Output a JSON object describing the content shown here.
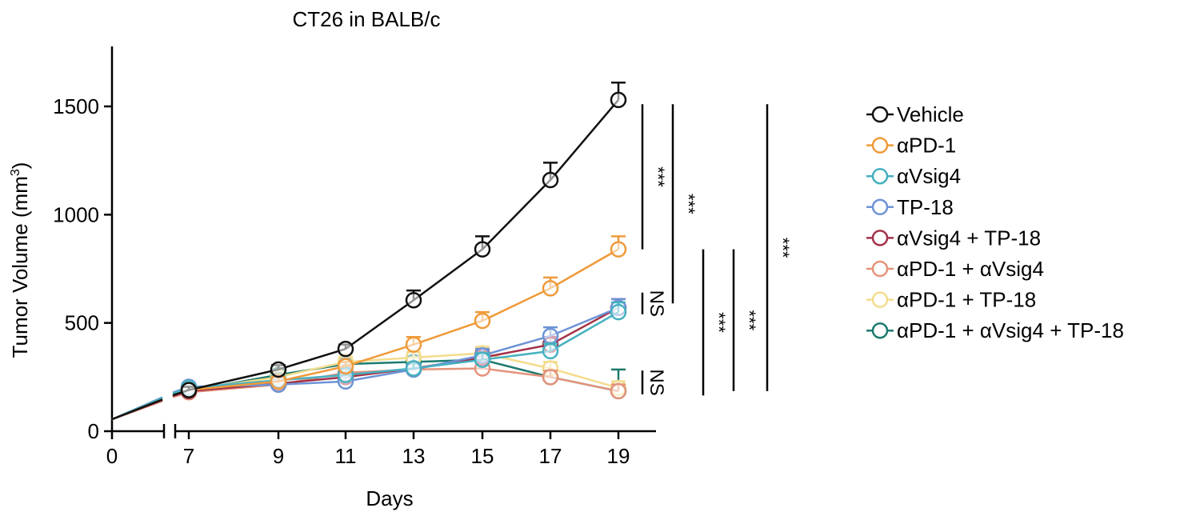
{
  "chart_data": {
    "type": "line",
    "title": "CT26 in BALB/c",
    "xlabel": "Days",
    "ylabel": "Tumor Volume (mm³)",
    "ylabel_main": "Tumor Volume (mm",
    "ylabel_sup": "3",
    "ylabel_close": ")",
    "xlim": [
      0,
      19
    ],
    "ylim": [
      0,
      1800
    ],
    "x_ticks": [
      0,
      7,
      9,
      11,
      13,
      15,
      17,
      19
    ],
    "x_tick_labels": [
      "0",
      "7",
      "9",
      "11",
      "13",
      "15",
      "17",
      "19"
    ],
    "y_ticks": [
      0,
      500,
      1000,
      1500
    ],
    "y_tick_labels": [
      "0",
      "500",
      "1000",
      "1500"
    ],
    "axis_break": true,
    "legend_position": "right",
    "start_point": {
      "x": 0,
      "y": 55
    },
    "series": [
      {
        "name": "Vehicle",
        "color": "#111111",
        "x": [
          7,
          9,
          11,
          13,
          15,
          17,
          19
        ],
        "y": [
          190,
          285,
          380,
          605,
          840,
          1160,
          1530
        ],
        "err": [
          15,
          20,
          20,
          45,
          60,
          80,
          80
        ]
      },
      {
        "name": "αPD-1",
        "color": "#ef9a3a",
        "x": [
          7,
          9,
          11,
          13,
          15,
          17,
          19
        ],
        "y": [
          190,
          230,
          300,
          400,
          510,
          660,
          840
        ],
        "err": [
          15,
          20,
          20,
          35,
          40,
          50,
          60
        ]
      },
      {
        "name": "αVsig4",
        "color": "#45b0c0",
        "x": [
          7,
          9,
          11,
          13,
          15,
          17,
          19
        ],
        "y": [
          200,
          235,
          260,
          290,
          330,
          370,
          550
        ],
        "err": [
          15,
          20,
          20,
          25,
          30,
          35,
          45
        ]
      },
      {
        "name": "TP-18",
        "color": "#6d93d6",
        "x": [
          7,
          9,
          11,
          13,
          15,
          17,
          19
        ],
        "y": [
          205,
          215,
          230,
          285,
          350,
          440,
          570
        ],
        "err": [
          15,
          20,
          20,
          25,
          30,
          40,
          40
        ]
      },
      {
        "name": "αVsig4 + TP-18",
        "color": "#a3324a",
        "x": [
          7,
          9,
          11,
          13,
          15,
          17,
          19
        ],
        "y": [
          185,
          220,
          250,
          290,
          340,
          400,
          570
        ],
        "err": [
          15,
          20,
          20,
          25,
          30,
          35,
          40
        ]
      },
      {
        "name": "αPD-1 + αVsig4",
        "color": "#e4937a",
        "x": [
          7,
          9,
          11,
          13,
          15,
          17,
          19
        ],
        "y": [
          180,
          215,
          270,
          285,
          290,
          250,
          185
        ],
        "err": [
          15,
          20,
          20,
          25,
          30,
          30,
          30
        ]
      },
      {
        "name": "αPD-1 + TP-18",
        "color": "#f3dc8c",
        "x": [
          7,
          9,
          11,
          13,
          15,
          17,
          19
        ],
        "y": [
          190,
          250,
          320,
          340,
          360,
          290,
          200
        ],
        "err": [
          15,
          20,
          25,
          25,
          30,
          30,
          30
        ]
      },
      {
        "name": "αPD-1 + αVsig4 + TP-18",
        "color": "#1c7a6e",
        "x": [
          7,
          9,
          11,
          13,
          15,
          17,
          19
        ],
        "y": [
          185,
          260,
          310,
          320,
          330,
          250,
          185
        ],
        "err": [
          15,
          20,
          25,
          25,
          30,
          30,
          100
        ]
      }
    ],
    "significance": [
      {
        "label": "***",
        "y_top": 1510,
        "y_bottom": 840,
        "column": 1
      },
      {
        "label": "***",
        "y_top": 1510,
        "y_bottom": 590,
        "column": 2
      },
      {
        "label": "NS",
        "y_top": 640,
        "y_bottom": 540,
        "column": 0
      },
      {
        "label": "NS",
        "y_top": 280,
        "y_bottom": 170,
        "column": 0
      },
      {
        "label": "***",
        "y_top": 840,
        "y_bottom": 165,
        "column": 3
      },
      {
        "label": "***",
        "y_top": 840,
        "y_bottom": 185,
        "column": 4
      },
      {
        "label": "***",
        "y_top": 1510,
        "y_bottom": 185,
        "column": 5
      }
    ]
  }
}
